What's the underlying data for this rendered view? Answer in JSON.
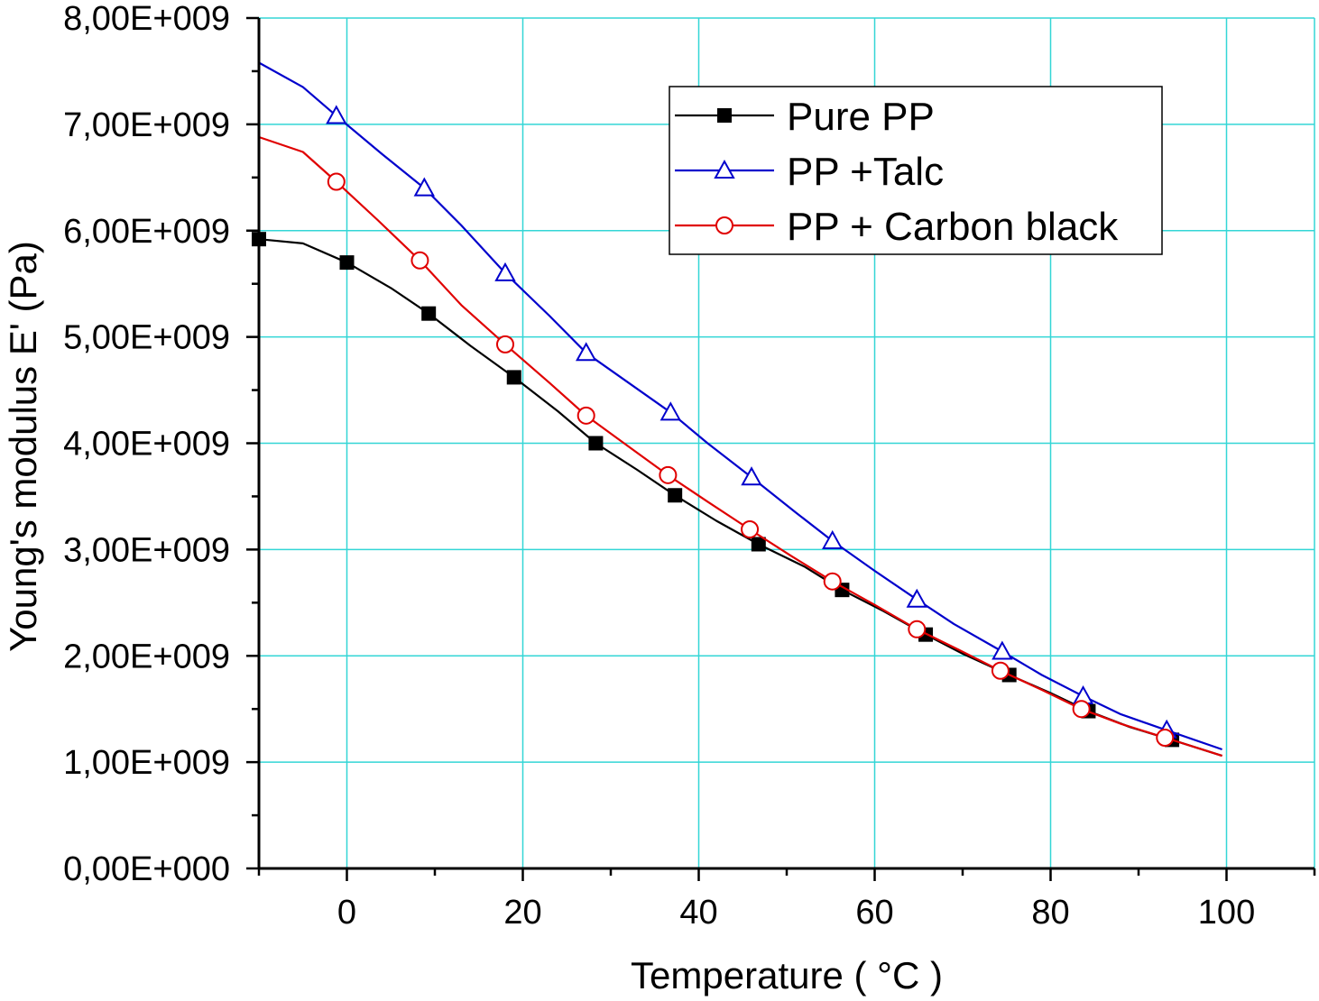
{
  "chart_data": {
    "type": "line",
    "xlabel": "Temperature ( °C )",
    "ylabel": "Young's modulus E' (Pa)",
    "xlim": [
      -10,
      110
    ],
    "ylim": [
      0,
      8000000000
    ],
    "x_ticks": [
      0,
      20,
      40,
      60,
      80,
      100
    ],
    "x_tick_labels": [
      "0",
      "20",
      "40",
      "60",
      "80",
      "100"
    ],
    "y_ticks": [
      0,
      1000000000,
      2000000000,
      3000000000,
      4000000000,
      5000000000,
      6000000000,
      7000000000,
      8000000000
    ],
    "y_tick_labels": [
      "0,00E+000",
      "1,00E+009",
      "2,00E+009",
      "3,00E+009",
      "4,00E+009",
      "5,00E+009",
      "6,00E+009",
      "7,00E+009",
      "8,00E+009"
    ],
    "grid": true,
    "legend_position": "top-right",
    "series": [
      {
        "name": "Pure PP",
        "color": "#000000",
        "marker": "filled-square",
        "x": [
          -10,
          -5,
          0,
          5,
          9.3,
          14,
          19,
          24,
          28.3,
          33,
          37.3,
          42,
          46.8,
          52,
          56.3,
          61,
          65.8,
          70,
          75.3,
          80,
          84.3,
          89,
          93.8,
          99.5
        ],
        "y": [
          5920000000,
          5880000000,
          5700000000,
          5460000000,
          5220000000,
          4920000000,
          4620000000,
          4300000000,
          4000000000,
          3750000000,
          3510000000,
          3270000000,
          3050000000,
          2840000000,
          2620000000,
          2420000000,
          2200000000,
          2020000000,
          1820000000,
          1650000000,
          1480000000,
          1330000000,
          1210000000,
          1060000000
        ],
        "marker_x": [
          -10,
          0,
          9.3,
          19,
          28.3,
          37.3,
          46.8,
          56.3,
          65.8,
          75.3,
          84.3,
          93.8
        ],
        "marker_y": [
          5920000000,
          5700000000,
          5220000000,
          4620000000,
          4000000000,
          3510000000,
          3050000000,
          2620000000,
          2200000000,
          1820000000,
          1480000000,
          1210000000
        ]
      },
      {
        "name": "PP +Talc",
        "color": "#0000cc",
        "marker": "open-triangle",
        "x": [
          -10,
          -5,
          -1.2,
          4,
          8.8,
          13,
          18,
          23,
          27.2,
          32,
          36.8,
          41,
          46,
          51,
          55.2,
          60,
          64.8,
          69,
          74.5,
          79,
          83.7,
          88,
          93.2,
          99.5
        ],
        "y": [
          7580000000,
          7350000000,
          7080000000,
          6720000000,
          6400000000,
          6050000000,
          5600000000,
          5200000000,
          4850000000,
          4570000000,
          4290000000,
          4000000000,
          3680000000,
          3350000000,
          3080000000,
          2800000000,
          2530000000,
          2300000000,
          2040000000,
          1820000000,
          1620000000,
          1450000000,
          1300000000,
          1120000000
        ],
        "marker_x": [
          -1.2,
          8.8,
          18,
          27.2,
          36.8,
          46,
          55.2,
          64.8,
          74.5,
          83.7,
          93.2
        ],
        "marker_y": [
          7080000000,
          6400000000,
          5600000000,
          4850000000,
          4290000000,
          3680000000,
          3080000000,
          2530000000,
          2040000000,
          1620000000,
          1300000000
        ]
      },
      {
        "name": "PP + Carbon black",
        "color": "#e00000",
        "marker": "open-circle",
        "x": [
          -10,
          -5,
          -1.2,
          3.5,
          8.3,
          13,
          18,
          23,
          27.2,
          32,
          36.5,
          41,
          45.8,
          50.5,
          55.2,
          60,
          64.8,
          69.5,
          74.3,
          79,
          83.5,
          88,
          93,
          99.5
        ],
        "y": [
          6880000000,
          6740000000,
          6460000000,
          6100000000,
          5720000000,
          5300000000,
          4930000000,
          4570000000,
          4260000000,
          3970000000,
          3700000000,
          3450000000,
          3190000000,
          2940000000,
          2700000000,
          2480000000,
          2250000000,
          2060000000,
          1860000000,
          1680000000,
          1500000000,
          1360000000,
          1230000000,
          1060000000
        ],
        "marker_x": [
          -1.2,
          8.3,
          18,
          27.2,
          36.5,
          45.8,
          55.2,
          64.8,
          74.3,
          83.5,
          93
        ],
        "marker_y": [
          6460000000,
          5720000000,
          4930000000,
          4260000000,
          3700000000,
          3190000000,
          2700000000,
          2250000000,
          1860000000,
          1500000000,
          1230000000
        ]
      }
    ]
  }
}
